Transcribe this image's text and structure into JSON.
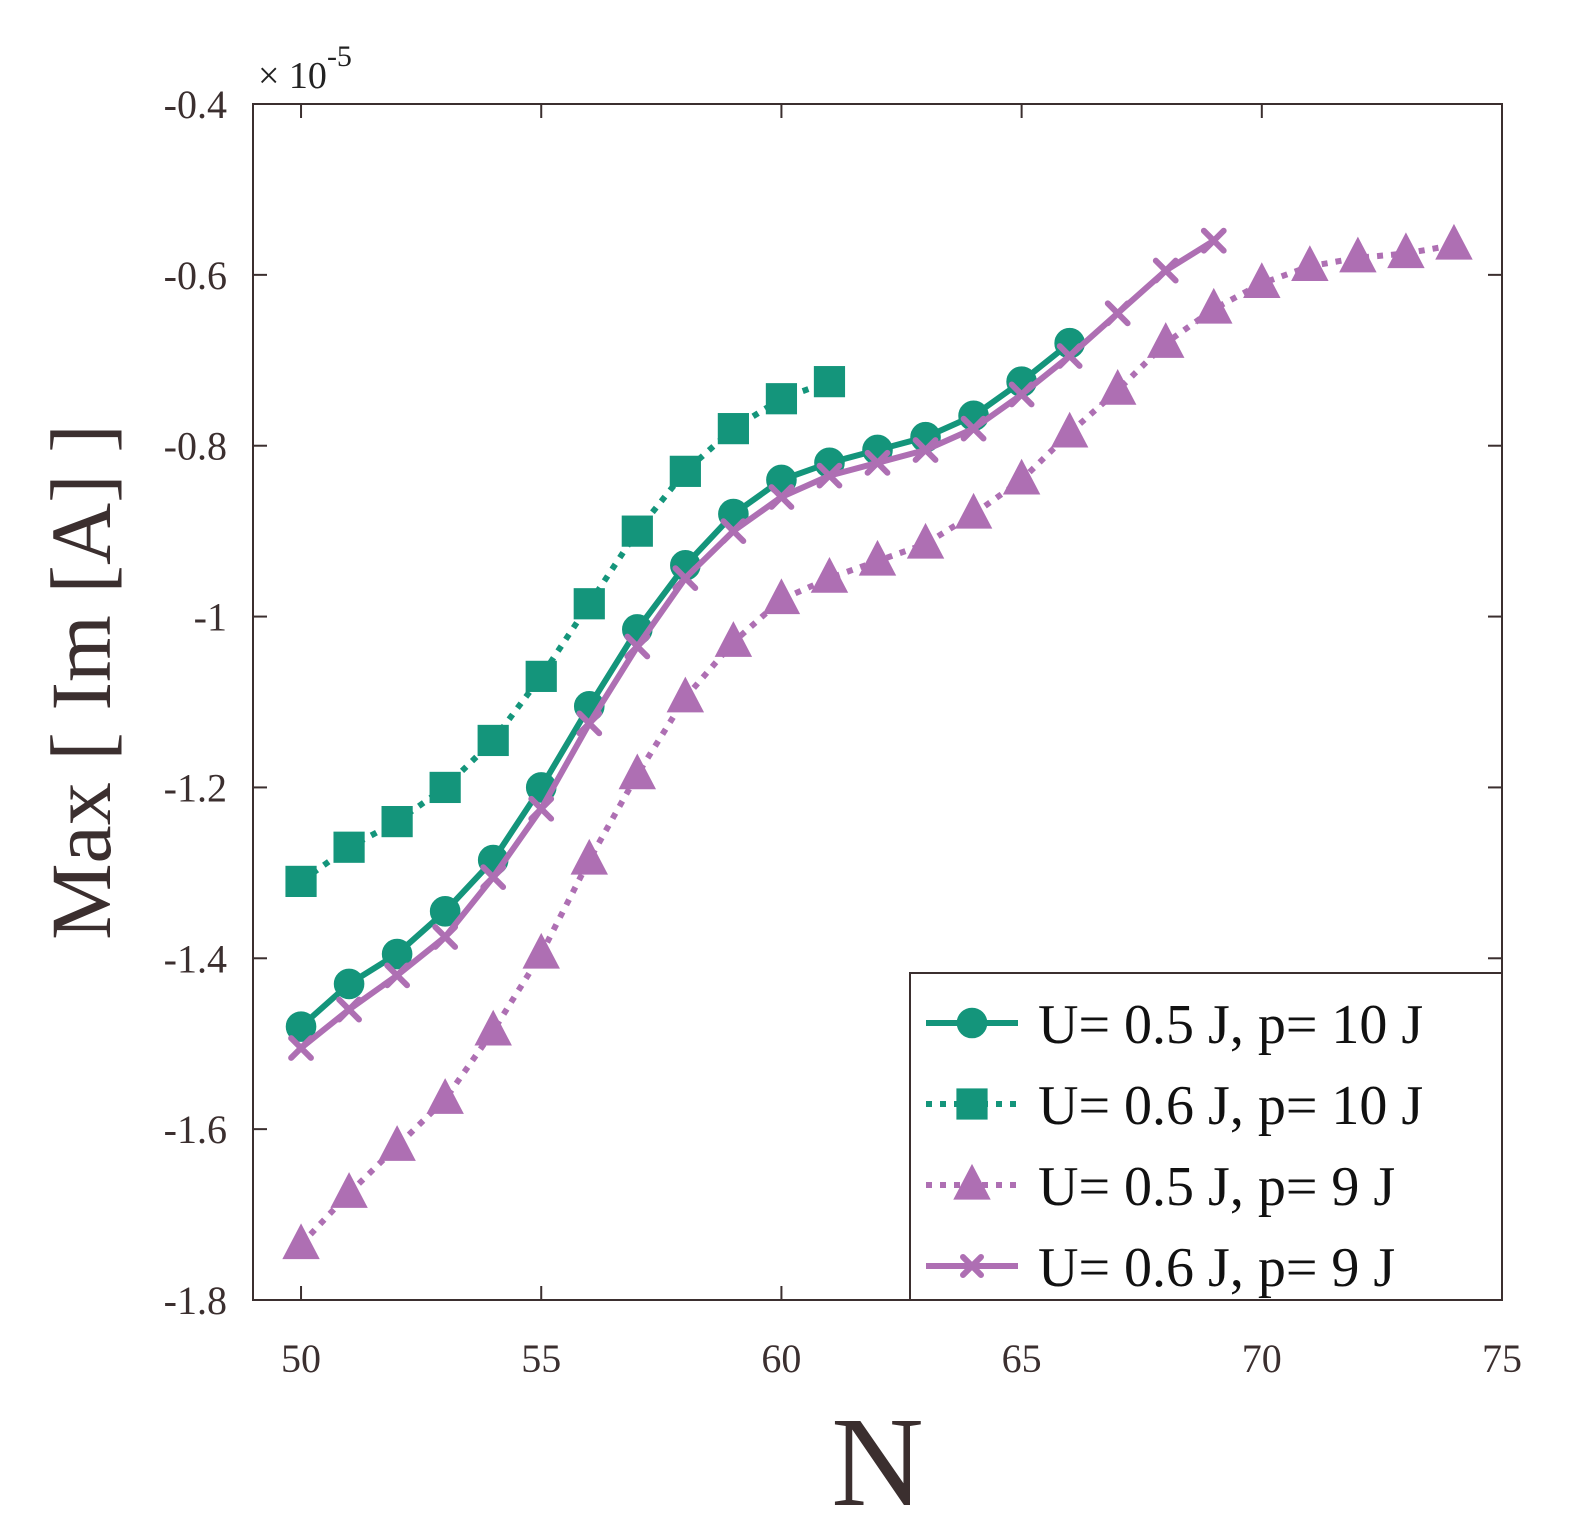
{
  "chart_data": {
    "type": "line",
    "title": "",
    "xlabel": "N",
    "ylabel": "Max [ Im [A] ]",
    "y_scale_label": "× 10",
    "y_scale_exponent": "-5",
    "xlim": [
      49,
      75
    ],
    "ylim": [
      -1.8,
      -0.4
    ],
    "xticks": [
      50,
      55,
      60,
      65,
      70,
      75
    ],
    "xtick_labels": [
      "50",
      "55",
      "60",
      "65",
      "70",
      "75"
    ],
    "yticks": [
      -1.8,
      -1.6,
      -1.4,
      -1.2,
      -1.0,
      -0.8,
      -0.6,
      -0.4
    ],
    "ytick_labels": [
      "-1.8",
      "-1.6",
      "-1.4",
      "-1.2",
      "-1",
      "-0.8",
      "-0.6",
      "-0.4"
    ],
    "grid": false,
    "legend_position": "bottom-right",
    "series": [
      {
        "name": "U= 0.5 J, p= 10 J",
        "color": "#14957b",
        "line_style": "solid",
        "marker": "circle",
        "x": [
          50,
          51,
          52,
          53,
          54,
          55,
          56,
          57,
          58,
          59,
          60,
          61,
          62,
          63,
          64,
          65,
          66
        ],
        "y": [
          -1.48,
          -1.43,
          -1.395,
          -1.345,
          -1.285,
          -1.2,
          -1.105,
          -1.015,
          -0.94,
          -0.88,
          -0.84,
          -0.82,
          -0.805,
          -0.79,
          -0.765,
          -0.725,
          -0.68
        ]
      },
      {
        "name": "U= 0.6 J, p= 10 J",
        "color": "#14957b",
        "line_style": "dotted",
        "marker": "square",
        "x": [
          50,
          51,
          52,
          53,
          54,
          55,
          56,
          57,
          58,
          59,
          60,
          61
        ],
        "y": [
          -1.31,
          -1.27,
          -1.24,
          -1.2,
          -1.145,
          -1.07,
          -0.985,
          -0.9,
          -0.83,
          -0.78,
          -0.745,
          -0.725
        ]
      },
      {
        "name": "U= 0.5 J, p= 9 J",
        "color": "#ae6fb3",
        "line_style": "dotted",
        "marker": "triangle",
        "x": [
          50,
          51,
          52,
          53,
          54,
          55,
          56,
          57,
          58,
          59,
          60,
          61,
          62,
          63,
          64,
          65,
          66,
          67,
          68,
          69,
          70,
          71,
          72,
          73,
          74
        ],
        "y": [
          -1.735,
          -1.675,
          -1.62,
          -1.565,
          -1.485,
          -1.395,
          -1.285,
          -1.185,
          -1.095,
          -1.03,
          -0.98,
          -0.955,
          -0.935,
          -0.915,
          -0.88,
          -0.84,
          -0.785,
          -0.735,
          -0.68,
          -0.64,
          -0.61,
          -0.59,
          -0.58,
          -0.575,
          -0.565
        ]
      },
      {
        "name": "U= 0.6 J, p= 9 J",
        "color": "#ae6fb3",
        "line_style": "solid",
        "marker": "x",
        "x": [
          50,
          51,
          52,
          53,
          54,
          55,
          56,
          57,
          58,
          59,
          60,
          61,
          62,
          63,
          64,
          65,
          66,
          67,
          68,
          69
        ],
        "y": [
          -1.505,
          -1.46,
          -1.42,
          -1.375,
          -1.305,
          -1.225,
          -1.125,
          -1.035,
          -0.955,
          -0.9,
          -0.86,
          -0.835,
          -0.82,
          -0.805,
          -0.78,
          -0.74,
          -0.695,
          -0.645,
          -0.595,
          -0.56
        ]
      }
    ]
  }
}
